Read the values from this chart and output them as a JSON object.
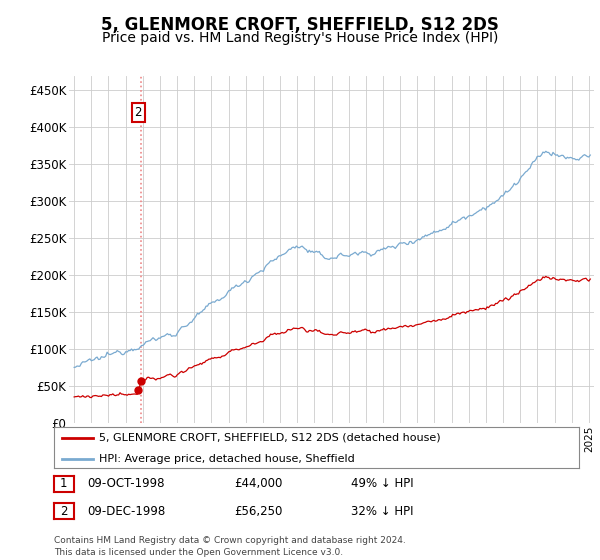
{
  "title": "5, GLENMORE CROFT, SHEFFIELD, S12 2DS",
  "subtitle": "Price paid vs. HM Land Registry's House Price Index (HPI)",
  "title_fontsize": 12,
  "subtitle_fontsize": 10,
  "ylabel_ticks": [
    "£0",
    "£50K",
    "£100K",
    "£150K",
    "£200K",
    "£250K",
    "£300K",
    "£350K",
    "£400K",
    "£450K"
  ],
  "ytick_values": [
    0,
    50000,
    100000,
    150000,
    200000,
    250000,
    300000,
    350000,
    400000,
    450000
  ],
  "ylim": [
    0,
    470000
  ],
  "year_start": 1995,
  "year_end": 2025,
  "hpi_color": "#7aaad0",
  "price_color": "#cc0000",
  "transaction1_date": "09-OCT-1998",
  "transaction1_price": 44000,
  "transaction1_label": "1",
  "transaction1_pct": "49% ↓ HPI",
  "transaction2_date": "09-DEC-1998",
  "transaction2_price": 56250,
  "transaction2_label": "2",
  "transaction2_pct": "32% ↓ HPI",
  "legend_line1": "5, GLENMORE CROFT, SHEFFIELD, S12 2DS (detached house)",
  "legend_line2": "HPI: Average price, detached house, Sheffield",
  "footer": "Contains HM Land Registry data © Crown copyright and database right 2024.\nThis data is licensed under the Open Government Licence v3.0.",
  "grid_color": "#cccccc",
  "background_color": "#ffffff",
  "vline_color": "#ee8888"
}
